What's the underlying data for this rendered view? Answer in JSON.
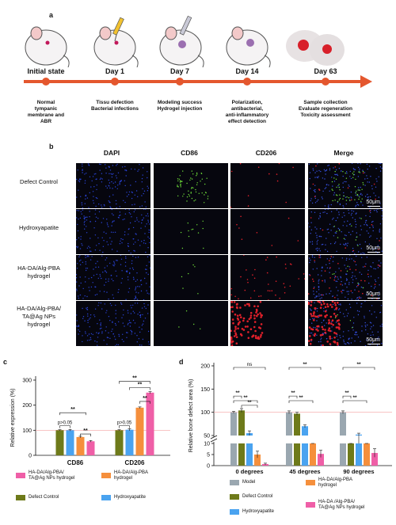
{
  "panel_a": {
    "label": "a",
    "days": [
      "Initial state",
      "Day 1",
      "Day 7",
      "Day 14",
      "Day 63"
    ],
    "steps": [
      [
        "Normal",
        "tympanic",
        "membrane and",
        "ABR"
      ],
      [
        "Tissu defection",
        "Bacterial infections"
      ],
      [
        "Modeling success",
        "Hydrogel injection"
      ],
      [
        "Polarization,",
        "antibacterial,",
        "anti-inflammatory",
        "effect detection"
      ],
      [
        "Sample collection",
        "Evaluate regeneration",
        "Toxicity assessment"
      ]
    ],
    "colors": {
      "timeline": "#e4572e",
      "node": "#e4572e"
    }
  },
  "panel_b": {
    "label": "b",
    "columns": [
      "DAPI",
      "CD86",
      "CD206",
      "Merge"
    ],
    "rows": [
      [
        "Defect Control"
      ],
      [
        "Hydroxyapatite"
      ],
      [
        "HA-DA/Alg-PBA",
        "hydrogel"
      ],
      [
        "HA-DA/Alg-PBA/",
        "TA@Ag NPs",
        "hydrogel"
      ]
    ],
    "scale_bar": "50μm"
  },
  "panel_c": {
    "label": "c",
    "legend": [
      {
        "name": "HA-DA/Alg-PBA/\nTA@Ag NPs hydrogel",
        "color": "#ef5fa7"
      },
      {
        "name": "HA-DA/Alg-PBA\nhydrogel",
        "color": "#f58f3c"
      },
      {
        "name": "Defect Control",
        "color": "#6e7a1a"
      },
      {
        "name": "Hydroxyapatite",
        "color": "#4aa3f0"
      }
    ],
    "annotations": [
      "**",
      "p>0.05",
      "**",
      "**",
      "p>0.05",
      "**",
      "**"
    ]
  },
  "panel_d": {
    "label": "d",
    "legend": [
      {
        "name": "Model",
        "color": "#9aa7b0"
      },
      {
        "name": "HA-DA/Alg-PBA\nhydrogel",
        "color": "#f58f3c"
      },
      {
        "name": "Defect Control",
        "color": "#6e7a1a"
      },
      {
        "name": "Hydroxyapatite",
        "color": "#4aa3f0"
      },
      {
        "name": "HA-DA /Alg-PBA/\nTA@Ag NPs hydrogel",
        "color": "#ef5fa7"
      }
    ],
    "annotations": [
      "ns",
      "**",
      "**",
      "**",
      "**",
      "**",
      "**",
      "**",
      "**",
      "**"
    ]
  },
  "chart_data": [
    {
      "type": "bar",
      "panel": "c",
      "ylabel": "Relative expression (%)",
      "ylim": [
        0,
        300
      ],
      "yticks": [
        0,
        100,
        200,
        300
      ],
      "reference_line": 100,
      "categories": [
        "CD86",
        "CD206"
      ],
      "series": [
        {
          "name": "Defect Control",
          "values": [
            100,
            100
          ],
          "errors": [
            2,
            2
          ],
          "color": "#6e7a1a"
        },
        {
          "name": "Hydroxyapatite",
          "values": [
            100,
            102
          ],
          "errors": [
            3,
            4
          ],
          "color": "#4aa3f0"
        },
        {
          "name": "HA-DA/Alg-PBA\nhydrogel",
          "values": [
            73,
            190
          ],
          "errors": [
            3,
            3
          ],
          "color": "#f58f3c"
        },
        {
          "name": "HA-DA/Alg-PBA/\nTA@Ag NPs hydrogel",
          "values": [
            56,
            250
          ],
          "errors": [
            3,
            4
          ],
          "color": "#ef5fa7"
        }
      ]
    },
    {
      "type": "bar",
      "panel": "d",
      "ylabel": "Relative bone defect area (%)",
      "y_axis_break": [
        10,
        50
      ],
      "yticks": [
        0,
        5,
        10,
        50,
        100,
        150,
        200
      ],
      "reference_line": 100,
      "categories": [
        "0 degrees",
        "45 degrees",
        "90 degrees"
      ],
      "series": [
        {
          "name": "Model",
          "values": [
            100,
            100,
            100
          ],
          "errors": [
            2,
            3,
            3
          ],
          "color": "#9aa7b0"
        },
        {
          "name": "Defect Control",
          "values": [
            104,
            97,
            37
          ],
          "errors": [
            4,
            3,
            2
          ],
          "color": "#6e7a1a"
        },
        {
          "name": "Hydroxyapatite",
          "values": [
            55,
            70,
            52
          ],
          "errors": [
            5,
            3,
            3
          ],
          "color": "#4aa3f0"
        },
        {
          "name": "HA-DA/Alg-PBA\nhydrogel",
          "values": [
            5,
            12,
            13
          ],
          "errors": [
            1.5,
            1,
            1
          ],
          "color": "#f58f3c"
        },
        {
          "name": "HA-DA /Alg-PBA/\nTA@Ag NPs hydrogel",
          "values": [
            0.7,
            5.3,
            5.7
          ],
          "errors": [
            0.4,
            1.6,
            1.9
          ],
          "color": "#ef5fa7"
        }
      ]
    }
  ]
}
